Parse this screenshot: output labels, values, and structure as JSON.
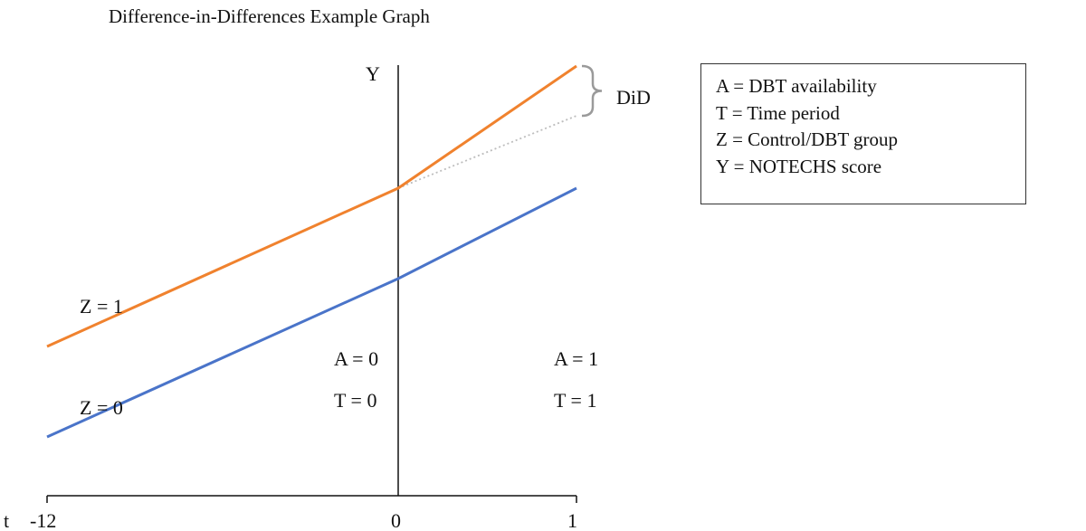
{
  "title": "Difference-in-Differences Example Graph",
  "legend": [
    "A = DBT availability",
    "T = Time period",
    "Z = Control/DBT group",
    "Y = NOTECHS score"
  ],
  "colors": {
    "treated": "#f0822e",
    "control": "#4a74c9",
    "counterfactual": "#bdbdbd",
    "axis": "#111111",
    "bracket": "#9a9a9a"
  },
  "chart_data": {
    "type": "line",
    "title": "Difference-in-Differences Example Graph",
    "xlabel": "t",
    "ylabel": "Y",
    "x_ticks": [
      "-12",
      "0",
      "1"
    ],
    "series": [
      {
        "name": "Z = 1",
        "points": [
          [
            -12,
            3.3
          ],
          [
            0,
            6.8
          ],
          [
            1,
            9.5
          ]
        ]
      },
      {
        "name": "Z = 0",
        "points": [
          [
            -12,
            1.3
          ],
          [
            0,
            4.8
          ],
          [
            1,
            6.8
          ]
        ]
      },
      {
        "points": [
          [
            0,
            6.8
          ],
          [
            1,
            8.4
          ]
        ],
        "style": "dotted"
      }
    ],
    "annotations": {
      "did_label": "DiD",
      "pre_period": [
        "A = 0",
        "T = 0"
      ],
      "post_period": [
        "A = 1",
        "T = 1"
      ]
    }
  }
}
